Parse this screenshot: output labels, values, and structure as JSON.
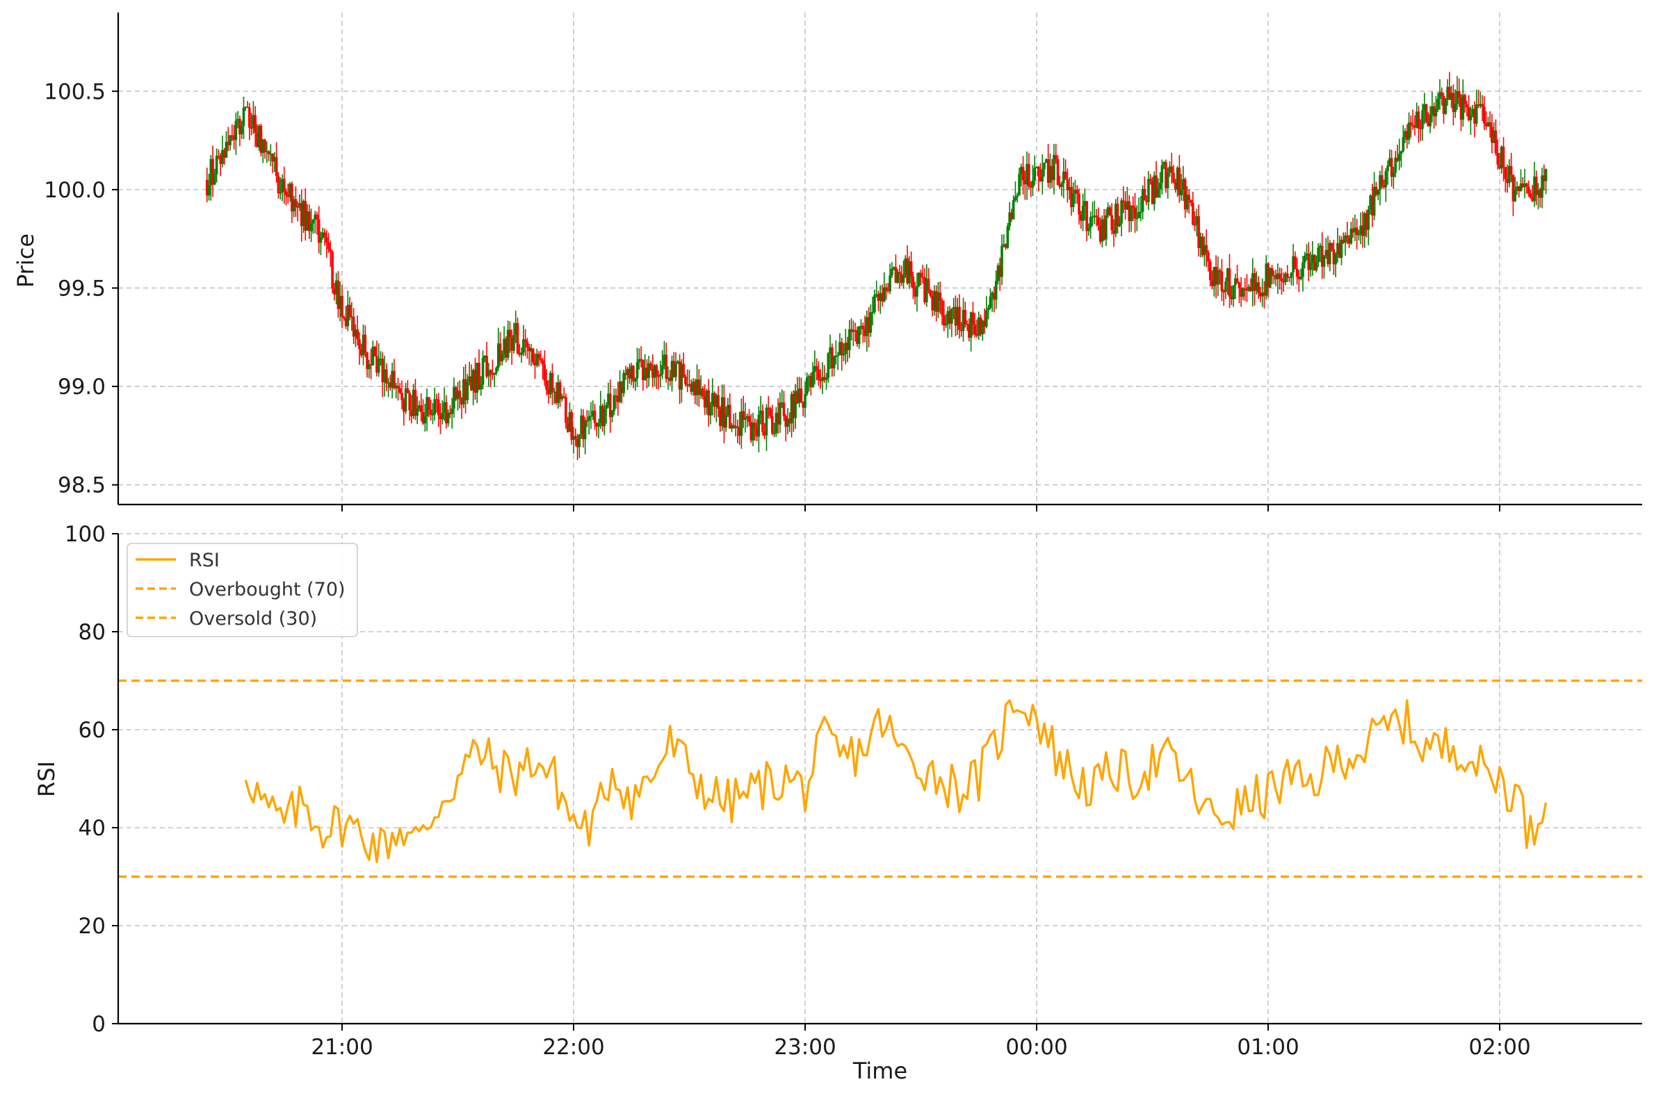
{
  "chart_data": [
    {
      "type": "candlestick",
      "ylabel": "Price",
      "ylim": [
        98.4,
        100.9
      ],
      "yticks": [
        "98.5",
        "99.0",
        "99.5",
        "100.0",
        "100.5"
      ],
      "grid": true,
      "colors": {
        "up": "#008000",
        "down": "#ff0000"
      },
      "close_path": [
        [
          "20:25",
          100.05
        ],
        [
          "20:35",
          100.4
        ],
        [
          "20:45",
          100.0
        ],
        [
          "20:55",
          99.75
        ],
        [
          "21:00",
          99.4
        ],
        [
          "21:05",
          99.2
        ],
        [
          "21:15",
          98.95
        ],
        [
          "21:25",
          98.85
        ],
        [
          "21:35",
          99.05
        ],
        [
          "21:45",
          99.25
        ],
        [
          "21:50",
          99.1
        ],
        [
          "21:55",
          99.0
        ],
        [
          "22:00",
          98.75
        ],
        [
          "22:07",
          98.85
        ],
        [
          "22:15",
          99.05
        ],
        [
          "22:25",
          99.1
        ],
        [
          "22:35",
          98.9
        ],
        [
          "22:45",
          98.8
        ],
        [
          "22:55",
          98.85
        ],
        [
          "23:05",
          99.1
        ],
        [
          "23:15",
          99.3
        ],
        [
          "23:25",
          99.6
        ],
        [
          "23:35",
          99.4
        ],
        [
          "23:45",
          99.3
        ],
        [
          "23:50",
          99.55
        ],
        [
          "23:55",
          100.05
        ],
        [
          "00:05",
          100.1
        ],
        [
          "00:15",
          99.8
        ],
        [
          "00:25",
          99.9
        ],
        [
          "00:35",
          100.1
        ],
        [
          "00:40",
          99.9
        ],
        [
          "00:45",
          99.55
        ],
        [
          "00:55",
          99.5
        ],
        [
          "01:05",
          99.6
        ],
        [
          "01:15",
          99.65
        ],
        [
          "01:25",
          99.85
        ],
        [
          "01:35",
          100.25
        ],
        [
          "01:45",
          100.45
        ],
        [
          "01:55",
          100.4
        ],
        [
          "02:05",
          99.95
        ],
        [
          "02:12",
          100.05
        ]
      ]
    },
    {
      "type": "line",
      "xlabel": "Time",
      "ylabel": "RSI",
      "ylim": [
        0,
        100
      ],
      "yticks": [
        "0",
        "20",
        "40",
        "60",
        "80",
        "100"
      ],
      "xticks": [
        "21:00",
        "22:00",
        "23:00",
        "00:00",
        "01:00",
        "02:00"
      ],
      "grid": true,
      "legend_position": "upper-left",
      "series": [
        {
          "name": "RSI",
          "color": "#ffa500",
          "path": [
            [
              "20:35",
              52
            ],
            [
              "20:40",
              44
            ],
            [
              "20:45",
              41
            ],
            [
              "20:50",
              45
            ],
            [
              "20:55",
              40
            ],
            [
              "21:00",
              41
            ],
            [
              "21:05",
              39
            ],
            [
              "21:10",
              36
            ],
            [
              "21:15",
              40
            ],
            [
              "21:20",
              37
            ],
            [
              "21:25",
              45
            ],
            [
              "21:30",
              50
            ],
            [
              "21:35",
              56
            ],
            [
              "21:40",
              52
            ],
            [
              "21:45",
              51
            ],
            [
              "21:50",
              54
            ],
            [
              "21:55",
              50
            ],
            [
              "22:00",
              41
            ],
            [
              "22:05",
              40
            ],
            [
              "22:10",
              52
            ],
            [
              "22:15",
              46
            ],
            [
              "22:20",
              50
            ],
            [
              "22:25",
              57
            ],
            [
              "22:30",
              52
            ],
            [
              "22:35",
              47
            ],
            [
              "22:40",
              45
            ],
            [
              "22:45",
              47
            ],
            [
              "22:50",
              49
            ],
            [
              "22:55",
              50
            ],
            [
              "23:00",
              48
            ],
            [
              "23:05",
              58
            ],
            [
              "23:10",
              54
            ],
            [
              "23:15",
              56
            ],
            [
              "23:20",
              62
            ],
            [
              "23:25",
              55
            ],
            [
              "23:30",
              53
            ],
            [
              "23:35",
              50
            ],
            [
              "23:40",
              48
            ],
            [
              "23:45",
              50
            ],
            [
              "23:50",
              58
            ],
            [
              "23:55",
              67
            ],
            [
              "00:00",
              63
            ],
            [
              "00:05",
              55
            ],
            [
              "00:10",
              50
            ],
            [
              "00:15",
              48
            ],
            [
              "00:20",
              52
            ],
            [
              "00:25",
              50
            ],
            [
              "00:30",
              53
            ],
            [
              "00:35",
              54
            ],
            [
              "00:40",
              48
            ],
            [
              "00:45",
              42
            ],
            [
              "00:50",
              43
            ],
            [
              "00:55",
              45
            ],
            [
              "01:00",
              47
            ],
            [
              "01:05",
              50
            ],
            [
              "01:10",
              48
            ],
            [
              "01:15",
              52
            ],
            [
              "01:20",
              55
            ],
            [
              "01:25",
              56
            ],
            [
              "01:30",
              60
            ],
            [
              "01:35",
              62
            ],
            [
              "01:40",
              57
            ],
            [
              "01:45",
              56
            ],
            [
              "01:50",
              57
            ],
            [
              "01:55",
              52
            ],
            [
              "02:00",
              50
            ],
            [
              "02:05",
              46
            ],
            [
              "02:08",
              38
            ],
            [
              "02:10",
              42
            ],
            [
              "02:12",
              48
            ]
          ]
        },
        {
          "name": "Overbought (70)",
          "color": "#ffa500",
          "value": 70
        },
        {
          "name": "Oversold (30)",
          "color": "#ffa500",
          "value": 30
        }
      ]
    }
  ]
}
